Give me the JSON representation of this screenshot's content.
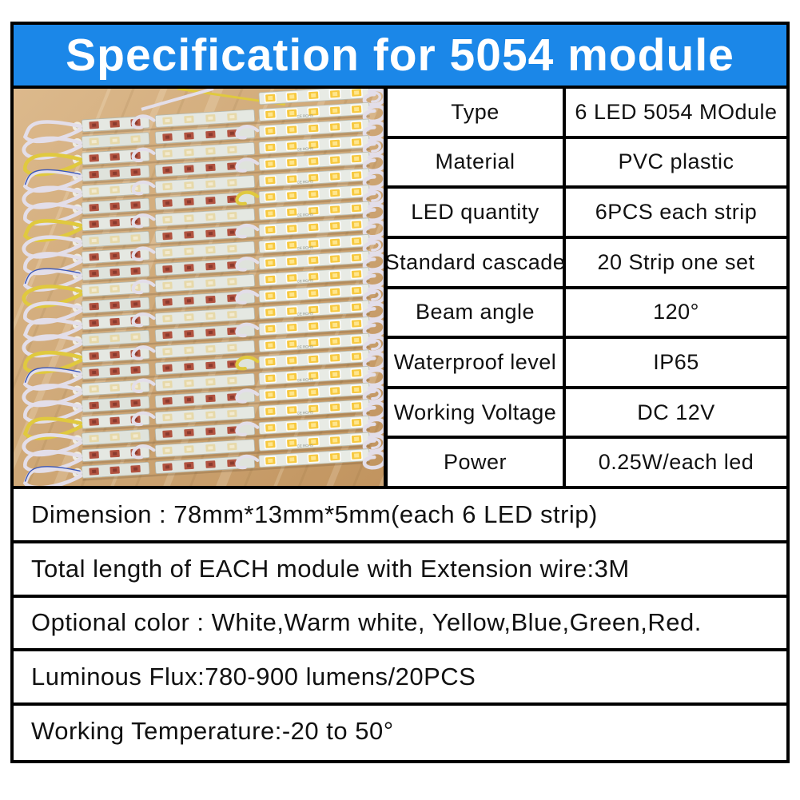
{
  "header": {
    "title": "Specification for 5054 module"
  },
  "colors": {
    "header_bg": "#1b87e8",
    "header_text": "#ffffff",
    "border": "#000000",
    "wood": "#cfa877",
    "wire_white": "#e3dee9",
    "wire_yellow": "#e0c93e",
    "wire_blue": "#3a56b8",
    "led_lit": "#f7c93f",
    "led_red": "#b25340"
  },
  "spec_table": {
    "rows": [
      {
        "label": "Type",
        "value": "6 LED 5054 MOdule"
      },
      {
        "label": "Material",
        "value": "PVC plastic"
      },
      {
        "label": "LED quantity",
        "value": "6PCS each strip"
      },
      {
        "label": "Standard cascade",
        "value": "20 Strip one set"
      },
      {
        "label": "Beam angle",
        "value": "120°"
      },
      {
        "label": "Waterproof level",
        "value": "IP65"
      },
      {
        "label": "Working Voltage",
        "value": "DC 12V"
      },
      {
        "label": "Power",
        "value": "0.25W/each led"
      }
    ]
  },
  "details": [
    "Dimension : 78mm*13mm*5mm(each 6 LED strip)",
    "Total length of EACH module with Extension wire:3M",
    "Optional color : White,Warm white, Yellow,Blue,Green,Red.",
    "Luminous Flux:780-900 lumens/20PCS",
    "Working Temperature:-20 to 50°"
  ],
  "photo": {
    "subject": "pile of 6-LED 5054 strip modules with extension wires on a wooden desk",
    "strip_print": "CE ROHS"
  }
}
